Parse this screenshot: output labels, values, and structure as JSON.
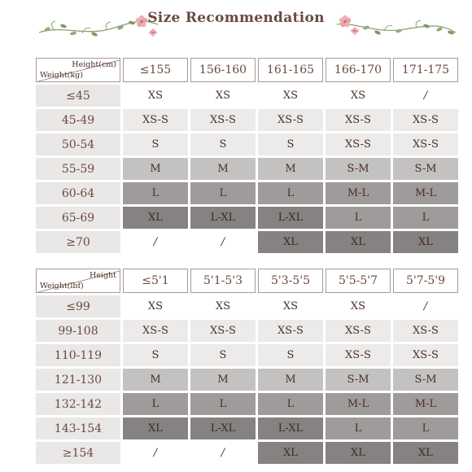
{
  "header": {
    "title": "Size Recommendation",
    "vine_color": "#7f9a64",
    "flower_color": "#e7a7ae"
  },
  "palette": {
    "level_0": "#ffffff",
    "level_1": "#ecebea",
    "level_2": "#c4c2c1",
    "level_3": "#9f9b9a",
    "level_4": "#858281"
  },
  "metric_table": {
    "corner_top": "Height(cm)",
    "corner_bottom": "Weight(kg)",
    "columns": [
      "≤155",
      "156-160",
      "161-165",
      "166-170",
      "171-175"
    ],
    "rows": [
      {
        "label": "≤45",
        "cells": [
          "XS",
          "XS",
          "XS",
          "XS",
          "/"
        ],
        "levels": [
          0,
          0,
          0,
          0,
          0
        ]
      },
      {
        "label": "45-49",
        "cells": [
          "XS-S",
          "XS-S",
          "XS-S",
          "XS-S",
          "XS-S"
        ],
        "levels": [
          1,
          1,
          1,
          1,
          1
        ]
      },
      {
        "label": "50-54",
        "cells": [
          "S",
          "S",
          "S",
          "XS-S",
          "XS-S"
        ],
        "levels": [
          1,
          1,
          1,
          1,
          1
        ]
      },
      {
        "label": "55-59",
        "cells": [
          "M",
          "M",
          "M",
          "S-M",
          "S-M"
        ],
        "levels": [
          2,
          2,
          2,
          2,
          2
        ]
      },
      {
        "label": "60-64",
        "cells": [
          "L",
          "L",
          "L",
          "M-L",
          "M-L"
        ],
        "levels": [
          3,
          3,
          3,
          3,
          3
        ]
      },
      {
        "label": "65-69",
        "cells": [
          "XL",
          "L-XL",
          "L-XL",
          "L",
          "L"
        ],
        "levels": [
          4,
          4,
          4,
          3,
          3
        ]
      },
      {
        "label": "≥70",
        "cells": [
          "/",
          "/",
          "XL",
          "XL",
          "XL"
        ],
        "levels": [
          0,
          0,
          4,
          4,
          4
        ]
      }
    ]
  },
  "imperial_table": {
    "corner_top": "Height",
    "corner_bottom": "Weight(lbf)",
    "columns": [
      "≤5'1",
      "5'1-5'3",
      "5'3-5'5",
      "5'5-5'7",
      "5'7-5'9"
    ],
    "rows": [
      {
        "label": "≤99",
        "cells": [
          "XS",
          "XS",
          "XS",
          "XS",
          "/"
        ],
        "levels": [
          0,
          0,
          0,
          0,
          0
        ]
      },
      {
        "label": "99-108",
        "cells": [
          "XS-S",
          "XS-S",
          "XS-S",
          "XS-S",
          "XS-S"
        ],
        "levels": [
          1,
          1,
          1,
          1,
          1
        ]
      },
      {
        "label": "110-119",
        "cells": [
          "S",
          "S",
          "S",
          "XS-S",
          "XS-S"
        ],
        "levels": [
          1,
          1,
          1,
          1,
          1
        ]
      },
      {
        "label": "121-130",
        "cells": [
          "M",
          "M",
          "M",
          "S-M",
          "S-M"
        ],
        "levels": [
          2,
          2,
          2,
          2,
          2
        ]
      },
      {
        "label": "132-142",
        "cells": [
          "L",
          "L",
          "L",
          "M-L",
          "M-L"
        ],
        "levels": [
          3,
          3,
          3,
          3,
          3
        ]
      },
      {
        "label": "143-154",
        "cells": [
          "XL",
          "L-XL",
          "L-XL",
          "L",
          "L"
        ],
        "levels": [
          4,
          4,
          4,
          3,
          3
        ]
      },
      {
        "label": "≥154",
        "cells": [
          "/",
          "/",
          "XL",
          "XL",
          "XL"
        ],
        "levels": [
          0,
          0,
          4,
          4,
          4
        ]
      }
    ]
  }
}
